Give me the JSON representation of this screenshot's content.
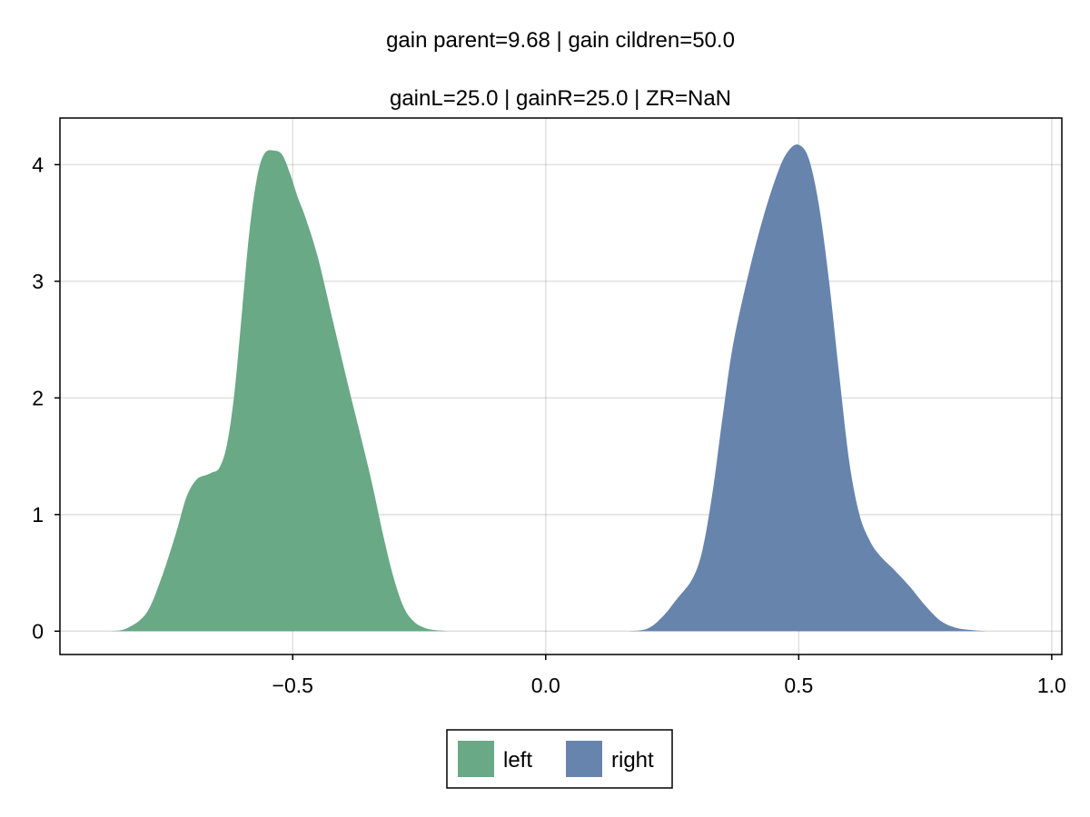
{
  "chart_data": {
    "type": "area",
    "title": "gain parent=9.68 | gain cildren=50.0",
    "subtitle": "gainL=25.0 | gainR=25.0 | ZR=NaN",
    "xlabel": "",
    "ylabel": "",
    "xlim": [
      -0.96,
      1.02
    ],
    "ylim": [
      -0.2,
      4.4
    ],
    "xticks": [
      -0.5,
      0.0,
      0.5,
      1.0
    ],
    "xtick_labels": [
      "−0.5",
      "0.0",
      "0.5",
      "1.0"
    ],
    "yticks": [
      0,
      1,
      2,
      3,
      4
    ],
    "ytick_labels": [
      "0",
      "1",
      "2",
      "3",
      "4"
    ],
    "grid": true,
    "legend_position": "bottom-center",
    "series": [
      {
        "name": "left",
        "color": "#69a985",
        "x": [
          -0.86,
          -0.83,
          -0.79,
          -0.76,
          -0.73,
          -0.71,
          -0.69,
          -0.67,
          -0.66,
          -0.645,
          -0.63,
          -0.615,
          -0.6,
          -0.585,
          -0.57,
          -0.555,
          -0.535,
          -0.52,
          -0.505,
          -0.49,
          -0.475,
          -0.45,
          -0.42,
          -0.39,
          -0.37,
          -0.345,
          -0.32,
          -0.3,
          -0.28,
          -0.26,
          -0.24,
          -0.22,
          -0.19
        ],
        "y": [
          0.0,
          0.02,
          0.15,
          0.45,
          0.85,
          1.15,
          1.3,
          1.34,
          1.36,
          1.4,
          1.6,
          2.05,
          2.75,
          3.45,
          3.9,
          4.1,
          4.12,
          4.08,
          3.92,
          3.72,
          3.55,
          3.2,
          2.65,
          2.1,
          1.75,
          1.3,
          0.8,
          0.45,
          0.2,
          0.08,
          0.03,
          0.01,
          0.0
        ]
      },
      {
        "name": "right",
        "color": "#6784ad",
        "x": [
          0.16,
          0.2,
          0.23,
          0.26,
          0.29,
          0.31,
          0.33,
          0.35,
          0.37,
          0.4,
          0.43,
          0.46,
          0.48,
          0.5,
          0.52,
          0.54,
          0.56,
          0.58,
          0.6,
          0.62,
          0.64,
          0.66,
          0.69,
          0.72,
          0.75,
          0.78,
          0.81,
          0.84,
          0.87,
          0.9
        ],
        "y": [
          0.0,
          0.02,
          0.12,
          0.28,
          0.45,
          0.7,
          1.2,
          1.85,
          2.45,
          3.05,
          3.55,
          3.95,
          4.12,
          4.17,
          4.05,
          3.65,
          3.0,
          2.2,
          1.45,
          1.0,
          0.78,
          0.65,
          0.52,
          0.38,
          0.22,
          0.09,
          0.03,
          0.01,
          0.0,
          0.0
        ]
      }
    ]
  }
}
